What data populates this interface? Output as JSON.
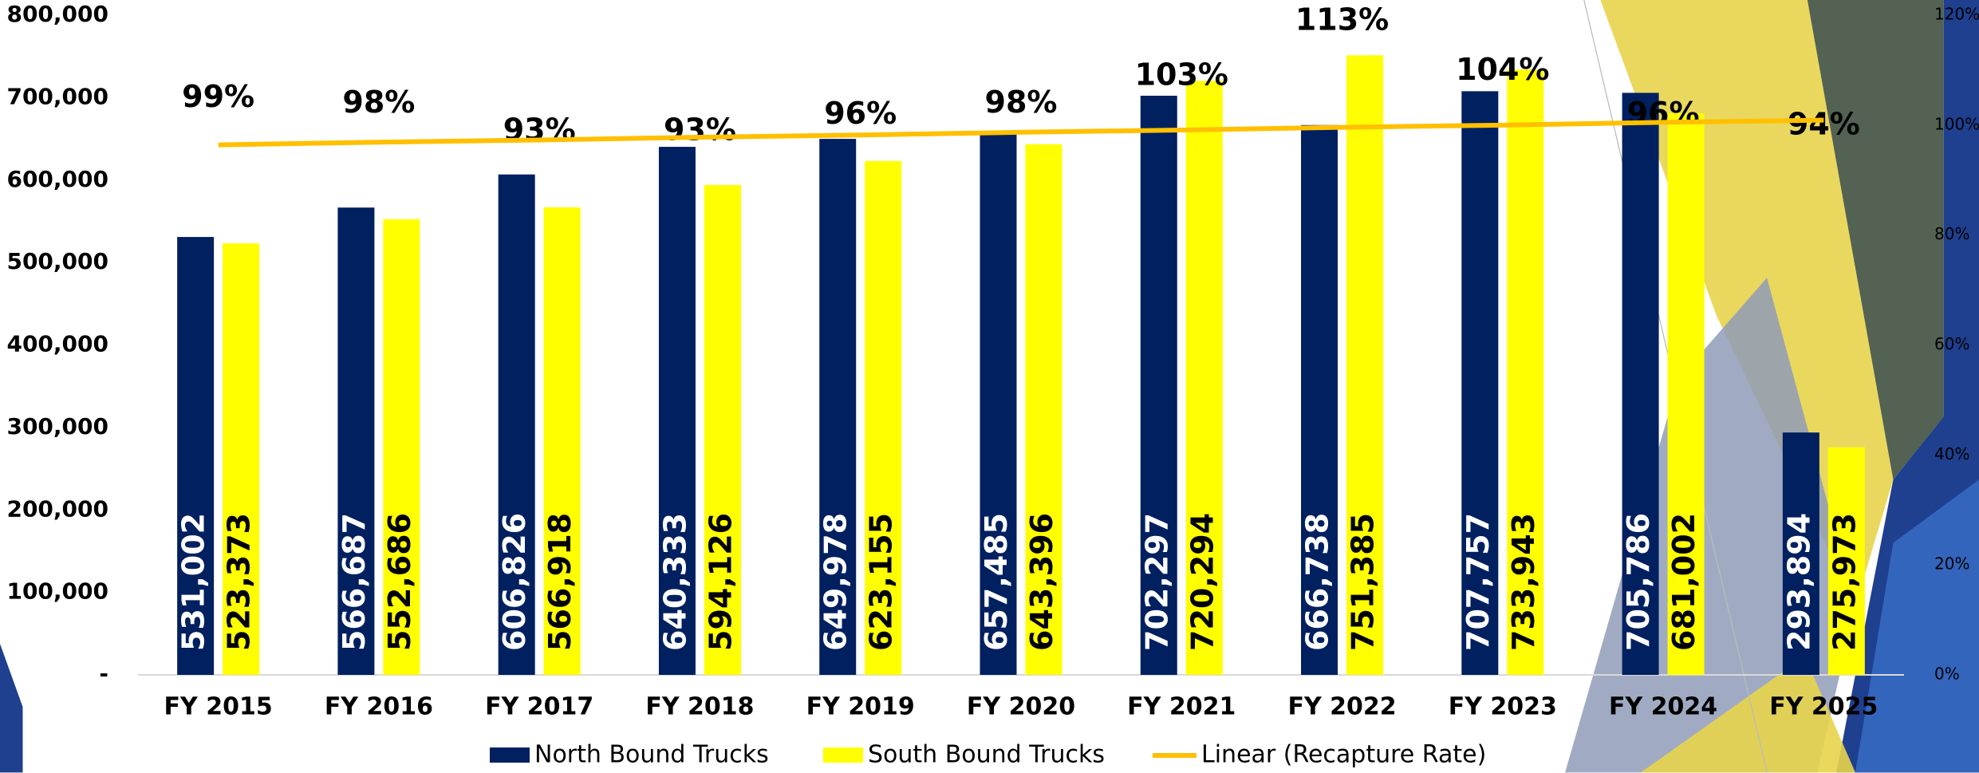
{
  "chart_data": {
    "type": "bar",
    "categories": [
      "FY 2015",
      "FY 2016",
      "FY 2017",
      "FY 2018",
      "FY 2019",
      "FY 2020",
      "FY 2021",
      "FY 2022",
      "FY 2023",
      "FY 2024",
      "FY 2025"
    ],
    "series": [
      {
        "name": "North Bound Trucks",
        "color": "#002060",
        "values": [
          531002,
          566687,
          606826,
          640333,
          649978,
          657485,
          702297,
          666738,
          707757,
          705786,
          293894
        ],
        "value_labels": [
          "531,002",
          "566,687",
          "606,826",
          "640,333",
          "649,978",
          "657,485",
          "702,297",
          "666,738",
          "707,757",
          "705,786",
          "293,894"
        ]
      },
      {
        "name": "South Bound Trucks",
        "color": "#ffff00",
        "values": [
          523373,
          552686,
          566918,
          594126,
          623155,
          643396,
          720294,
          751385,
          733943,
          681002,
          275973
        ],
        "value_labels": [
          "523,373",
          "552,686",
          "566,918",
          "594,126",
          "623,155",
          "643,396",
          "720,294",
          "751,385",
          "733,943",
          "681,002",
          "275,973"
        ]
      }
    ],
    "recapture_rate": {
      "axis": "y2",
      "values": [
        99,
        98,
        93,
        93,
        96,
        98,
        103,
        113,
        104,
        96,
        94
      ],
      "value_labels": [
        "99%",
        "98%",
        "93%",
        "93%",
        "96%",
        "98%",
        "103%",
        "113%",
        "104%",
        "96%",
        "94%"
      ]
    },
    "trendline": {
      "name": "Linear (Recapture Rate)",
      "color": "#ffc000",
      "axis": "y2",
      "values": [
        96.4,
        96.9,
        97.3,
        97.8,
        98.2,
        98.7,
        99.1,
        99.6,
        100.0,
        100.5,
        100.9
      ]
    },
    "ylim": [
      0,
      800000
    ],
    "yticks": [
      {
        "value": 0,
        "label": "-"
      },
      {
        "value": 100000,
        "label": "100,000"
      },
      {
        "value": 200000,
        "label": "200,000"
      },
      {
        "value": 300000,
        "label": "300,000"
      },
      {
        "value": 400000,
        "label": "400,000"
      },
      {
        "value": 500000,
        "label": "500,000"
      },
      {
        "value": 600000,
        "label": "600,000"
      },
      {
        "value": 700000,
        "label": "700,000"
      },
      {
        "value": 800000,
        "label": "800,000"
      }
    ],
    "y2lim": [
      0,
      120
    ],
    "y2ticks": [
      {
        "value": 0,
        "label": "0%"
      },
      {
        "value": 20,
        "label": "20%"
      },
      {
        "value": 40,
        "label": "40%"
      },
      {
        "value": 60,
        "label": "60%"
      },
      {
        "value": 80,
        "label": "80%"
      },
      {
        "value": 100,
        "label": "100%"
      },
      {
        "value": 120,
        "label": "120%"
      }
    ],
    "legend": "bottom"
  }
}
